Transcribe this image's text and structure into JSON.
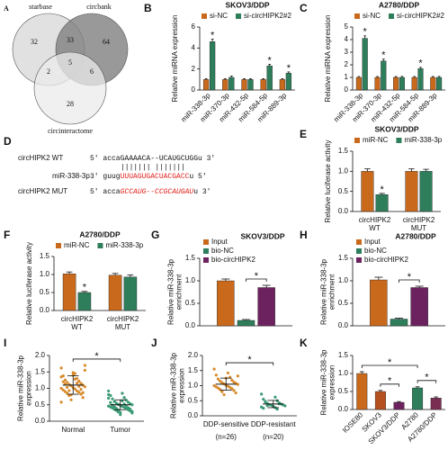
{
  "venn": {
    "panel": "A",
    "sets": [
      "starbase",
      "circbank",
      "circinteractome"
    ],
    "regions": {
      "starbase_only": "32",
      "starbase_circbank": "33",
      "circbank_only": "64",
      "starbase_circinteractome": "2",
      "all": "5",
      "circbank_circinteractome": "6",
      "circinteractome_only": "28"
    }
  },
  "sequence_panel": {
    "panel": "D",
    "rows": [
      {
        "label": "circHIPK2 WT",
        "parts": [
          {
            "text": "5' accaGAAAACA--UCAUGCUGGu 3'",
            "red": false,
            "italic": false
          }
        ]
      },
      {
        "label": "miR-338-3p",
        "parts": [
          {
            "text": "3' guug",
            "red": false,
            "italic": false
          },
          {
            "text": "UUUAGUGACUACGACC",
            "red": true,
            "italic": false
          },
          {
            "text": "u 5'",
            "red": false,
            "italic": false
          }
        ]
      },
      {
        "label": "circHIPK2 MUT",
        "parts": [
          {
            "text": "5' acca",
            "red": false,
            "italic": false
          },
          {
            "text": "GCCAUG--CCGCAUGAU",
            "red": true,
            "italic": true
          },
          {
            "text": "u 3'",
            "red": false,
            "italic": false
          }
        ]
      }
    ],
    "pairing": "|||||||   |||||||"
  },
  "chart_data": [
    {
      "panel": "B",
      "type": "bar",
      "title": "SKOV3/DDP",
      "ylabel": "Relative miRNA expression",
      "categories": [
        "miR-338-3p",
        "miR-370-3p",
        "miR-432-5p",
        "miR-584-5p",
        "miR-889-3p"
      ],
      "xtick_rotation": 45,
      "legend": "top",
      "series": [
        {
          "name": "si-NC",
          "color": "#c8691c",
          "values": [
            1,
            1,
            1,
            1,
            1
          ],
          "errors": [
            0.08,
            0.08,
            0.08,
            0.08,
            0.08
          ]
        },
        {
          "name": "si-circHIPK2#2",
          "color": "#2e7d5b",
          "values": [
            4.6,
            1.2,
            1.0,
            2.3,
            1.6
          ],
          "errors": [
            0.25,
            0.12,
            0.08,
            0.15,
            0.12
          ],
          "significance": [
            "*",
            null,
            null,
            "*",
            "*"
          ]
        }
      ],
      "ylim": [
        0,
        6
      ],
      "yticks": [
        0,
        2,
        4,
        6
      ]
    },
    {
      "panel": "C",
      "type": "bar",
      "title": "A2780/DDP",
      "ylabel": "Relative miRNA expression",
      "categories": [
        "miR-338-3p",
        "miR-370-3p",
        "miR-432-5p",
        "miR-584-5p",
        "miR-889-3p"
      ],
      "xtick_rotation": 45,
      "legend": "top",
      "series": [
        {
          "name": "si-NC",
          "color": "#c8691c",
          "values": [
            1,
            1,
            1,
            1,
            1
          ],
          "errors": [
            0.07,
            0.07,
            0.07,
            0.07,
            0.07
          ]
        },
        {
          "name": "si-circHIPK2#2",
          "color": "#2e7d5b",
          "values": [
            4.1,
            2.3,
            1.0,
            1.7,
            1.0
          ],
          "errors": [
            0.2,
            0.15,
            0.08,
            0.1,
            0.08
          ],
          "significance": [
            "*",
            "*",
            null,
            "*",
            null
          ]
        }
      ],
      "ylim": [
        0,
        5
      ],
      "yticks": [
        0,
        1,
        2,
        3,
        4,
        5
      ]
    },
    {
      "panel": "E",
      "type": "bar",
      "title": "SKOV3/DDP",
      "ylabel": "Relative luciferase activity",
      "categories": [
        "circHIPK2\nWT",
        "circHIPK2\nMUT"
      ],
      "legend": "top",
      "series": [
        {
          "name": "miR-NC",
          "color": "#c8691c",
          "values": [
            1.0,
            1.0
          ],
          "errors": [
            0.06,
            0.06
          ]
        },
        {
          "name": "miR-338-3p",
          "color": "#2e7d5b",
          "values": [
            0.42,
            1.0
          ],
          "errors": [
            0.03,
            0.05
          ],
          "significance": [
            "*",
            null
          ]
        }
      ],
      "ylim": [
        0,
        1.5
      ],
      "yticks": [
        {
          "value": 0,
          "label": "0.0"
        },
        0.5,
        {
          "value": 1,
          "label": "1.0"
        },
        1.5
      ]
    },
    {
      "panel": "F",
      "type": "bar",
      "title": "A2780/DDP",
      "ylabel": "Relative luciferase activity",
      "categories": [
        "circHIPK2\nWT",
        "circHIPK2\nMUT"
      ],
      "legend": "top",
      "series": [
        {
          "name": "miR-NC",
          "color": "#c8691c",
          "values": [
            1.02,
            0.98
          ],
          "errors": [
            0.05,
            0.05
          ]
        },
        {
          "name": "miR-338-3p",
          "color": "#2e7d5b",
          "values": [
            0.5,
            0.93
          ],
          "errors": [
            0.03,
            0.06
          ],
          "significance": [
            "*",
            null
          ]
        }
      ],
      "ylim": [
        0,
        1.5
      ],
      "yticks": [
        {
          "value": 0,
          "label": "0.0"
        },
        0.5,
        {
          "value": 1,
          "label": "1.0"
        },
        1.5
      ]
    },
    {
      "panel": "G",
      "type": "bar",
      "title": "SKOV3/DDP",
      "ylabel": "Relative miR-338-3p\nenrichment",
      "categories": [
        null
      ],
      "legend": "upper left",
      "series": [
        {
          "name": "Input",
          "color": "#c8691c",
          "values": [
            1.0
          ],
          "errors": [
            0.04
          ]
        },
        {
          "name": "bio-NC",
          "color": "#2e7d5b",
          "values": [
            0.12
          ],
          "errors": [
            0.02
          ]
        },
        {
          "name": "bio-circHIPK2",
          "color": "#6d2260",
          "values": [
            0.85
          ],
          "errors": [
            0.05
          ]
        }
      ],
      "brackets": [
        {
          "between": [
            1,
            2
          ],
          "label": "*"
        }
      ],
      "ylim": [
        0,
        1.5
      ],
      "yticks": [
        {
          "value": 0,
          "label": "0.0"
        },
        0.5,
        {
          "value": 1,
          "label": "1.0"
        },
        1.5
      ]
    },
    {
      "panel": "H",
      "type": "bar",
      "title": "A2780/DDP",
      "ylabel": "Relative miR-338-3p\nenrichment",
      "categories": [
        null
      ],
      "legend": "upper left",
      "series": [
        {
          "name": "Input",
          "color": "#c8691c",
          "values": [
            1.02
          ],
          "errors": [
            0.06
          ]
        },
        {
          "name": "bio-NC",
          "color": "#2e7d5b",
          "values": [
            0.15
          ],
          "errors": [
            0.02
          ]
        },
        {
          "name": "bio-circHIPK2",
          "color": "#6d2260",
          "values": [
            0.85
          ],
          "errors": [
            0.03
          ]
        }
      ],
      "brackets": [
        {
          "between": [
            1,
            2
          ],
          "label": "*"
        }
      ],
      "ylim": [
        0,
        1.5
      ],
      "yticks": [
        {
          "value": 0,
          "label": "0.0"
        },
        0.5,
        {
          "value": 1,
          "label": "1.0"
        },
        1.5
      ]
    },
    {
      "panel": "I",
      "type": "dot",
      "ylabel": "Relative miR-338-3p\nexpression",
      "categories": [
        "Normal",
        "Tumor"
      ],
      "colors": [
        "#d98a2b",
        "#3a9a74"
      ],
      "values": [
        [
          1.62,
          1.45,
          1.38,
          1.3,
          1.25,
          1.22,
          1.18,
          1.15,
          1.12,
          1.1,
          1.08,
          1.05,
          1.02,
          1.0,
          0.98,
          0.95,
          0.92,
          0.9,
          0.88,
          0.85,
          0.82,
          0.78,
          0.72,
          0.65,
          1.55,
          1.4,
          1.35,
          1.28,
          1.2,
          1.16,
          1.13,
          1.06,
          1.03,
          0.97,
          0.93,
          0.87,
          0.8,
          1.7,
          1.48,
          0.58
        ],
        [
          0.92,
          0.85,
          0.78,
          0.72,
          0.68,
          0.64,
          0.6,
          0.58,
          0.55,
          0.53,
          0.51,
          0.5,
          0.48,
          0.46,
          0.45,
          0.43,
          0.42,
          0.4,
          0.38,
          0.36,
          0.35,
          0.33,
          0.31,
          0.28,
          0.25,
          0.2,
          0.7,
          0.62,
          0.57,
          0.52,
          0.49,
          0.47,
          0.44,
          0.41,
          0.39,
          0.37,
          0.34,
          0.3,
          0.27,
          0.81
        ]
      ],
      "means": [
        1.1,
        0.5
      ],
      "sds": [
        0.28,
        0.15
      ],
      "brackets": [
        {
          "between": [
            0,
            1
          ],
          "label": "*"
        }
      ],
      "ylim": [
        0,
        2
      ],
      "yticks": [
        {
          "value": 0,
          "label": "0.0"
        },
        0.5,
        {
          "value": 1,
          "label": "1.0"
        },
        1.5,
        {
          "value": 2,
          "label": "2.0"
        }
      ]
    },
    {
      "panel": "J",
      "type": "dot",
      "ylabel": "Relative miR-338-3p\nexpression",
      "categories": [
        "DDP-sensitive",
        "DDP-resistant"
      ],
      "category_notes": [
        "(n=26)",
        "(n=20)"
      ],
      "colors": [
        "#d98a2b",
        "#3a9a74"
      ],
      "values": [
        [
          1.55,
          1.42,
          1.35,
          1.28,
          1.22,
          1.18,
          1.15,
          1.12,
          1.1,
          1.08,
          1.06,
          1.04,
          1.02,
          1.0,
          0.98,
          0.96,
          0.94,
          0.92,
          0.9,
          0.87,
          0.84,
          0.8,
          0.76,
          0.7,
          1.32,
          1.25
        ],
        [
          0.72,
          0.62,
          0.55,
          0.5,
          0.46,
          0.43,
          0.41,
          0.39,
          0.37,
          0.36,
          0.35,
          0.33,
          0.31,
          0.29,
          0.27,
          0.25,
          0.22,
          0.48,
          0.4,
          0.34
        ]
      ],
      "means": [
        1.05,
        0.39
      ],
      "sds": [
        0.2,
        0.12
      ],
      "brackets": [
        {
          "between": [
            0,
            1
          ],
          "label": "*"
        }
      ],
      "ylim": [
        0,
        2
      ],
      "yticks": [
        {
          "value": 0,
          "label": "0.0"
        },
        0.5,
        {
          "value": 1,
          "label": "1.0"
        },
        1.5,
        {
          "value": 2,
          "label": "2.0"
        }
      ]
    },
    {
      "panel": "K",
      "type": "bar",
      "ylabel": "Relative miR-338-3p\nexpression",
      "categories": [
        "IOSE80",
        "SKOV3",
        "SKOV3/DDP",
        "A2780",
        "A2780/DDP"
      ],
      "xtick_rotation": 45,
      "values": [
        1.0,
        0.5,
        0.2,
        0.6,
        0.32
      ],
      "errors": [
        0.05,
        0.03,
        0.02,
        0.03,
        0.03
      ],
      "colors": [
        "#c8691c",
        "#b5501f",
        "#6d2260",
        "#2e7d5b",
        "#7a2f52"
      ],
      "brackets": [
        {
          "between": [
            1,
            2
          ],
          "label": "*"
        },
        {
          "between": [
            3,
            4
          ],
          "label": "*"
        },
        {
          "between": [
            0,
            3
          ],
          "label": "*"
        }
      ],
      "ylim": [
        0,
        1.5
      ],
      "yticks": [
        {
          "value": 0,
          "label": "0.0"
        },
        0.5,
        {
          "value": 1,
          "label": "1.0"
        },
        1.5
      ]
    }
  ]
}
